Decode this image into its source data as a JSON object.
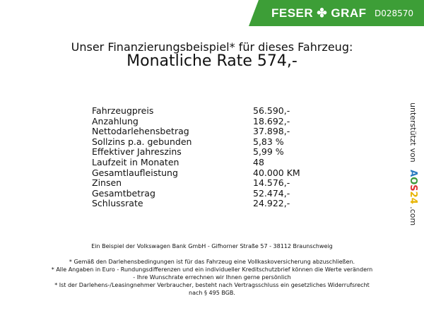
{
  "header": {
    "brand": "FESER",
    "brand2": "GRAF",
    "brand_icon": "clover-icon",
    "code": "D028570",
    "brand_color": "#3d9e37"
  },
  "title": {
    "line1": "Unser Finanzierungsbeispiel* für dieses Fahrzeug:",
    "line2": "Monatliche Rate 574,-"
  },
  "rows": [
    {
      "label": "Fahrzeugpreis",
      "value": "56.590,-"
    },
    {
      "label": "Anzahlung",
      "value": "18.692,-"
    },
    {
      "label": "Nettodarlehensbetrag",
      "value": "37.898,-"
    },
    {
      "label": "Sollzins p.a. gebunden",
      "value": "5,83 %"
    },
    {
      "label": "Effektiver Jahreszins",
      "value": "5,99 %"
    },
    {
      "label": "Laufzeit in Monaten",
      "value": "48"
    },
    {
      "label": "Gesamtlaufleistung",
      "value": "40.000 KM"
    },
    {
      "label": "Zinsen",
      "value": "14.576,-"
    },
    {
      "label": "Gesamtbetrag",
      "value": "52.474,-"
    },
    {
      "label": "Schlussrate",
      "value": "24.922,-"
    }
  ],
  "side": {
    "text": "unterstützt von",
    "logo": [
      "A",
      "O",
      "S",
      "2",
      "4"
    ],
    "suffix": ".com"
  },
  "footer": {
    "bank": "Ein Beispiel der Volkswagen Bank GmbH - Gifhorner Straße 57 - 38112 Braunschweig",
    "n1": "* Gemäß den Darlehensbedingungen ist für das Fahrzeug eine Vollkaskoversicherung abzuschließen.",
    "n2a": "* Alle Angaben in Euro - Rundungsdifferenzen und ein individueller Kreditschutzbrief können die Werte verändern",
    "n2b": "- Ihre Wunschrate errechnen wir Ihnen gerne persönlich",
    "n3a": "* Ist der Darlehens-/Leasingnehmer Verbraucher, besteht nach Vertragsschluss ein gesetzliches Widerrufsrecht",
    "n3b": "nach § 495 BGB."
  }
}
